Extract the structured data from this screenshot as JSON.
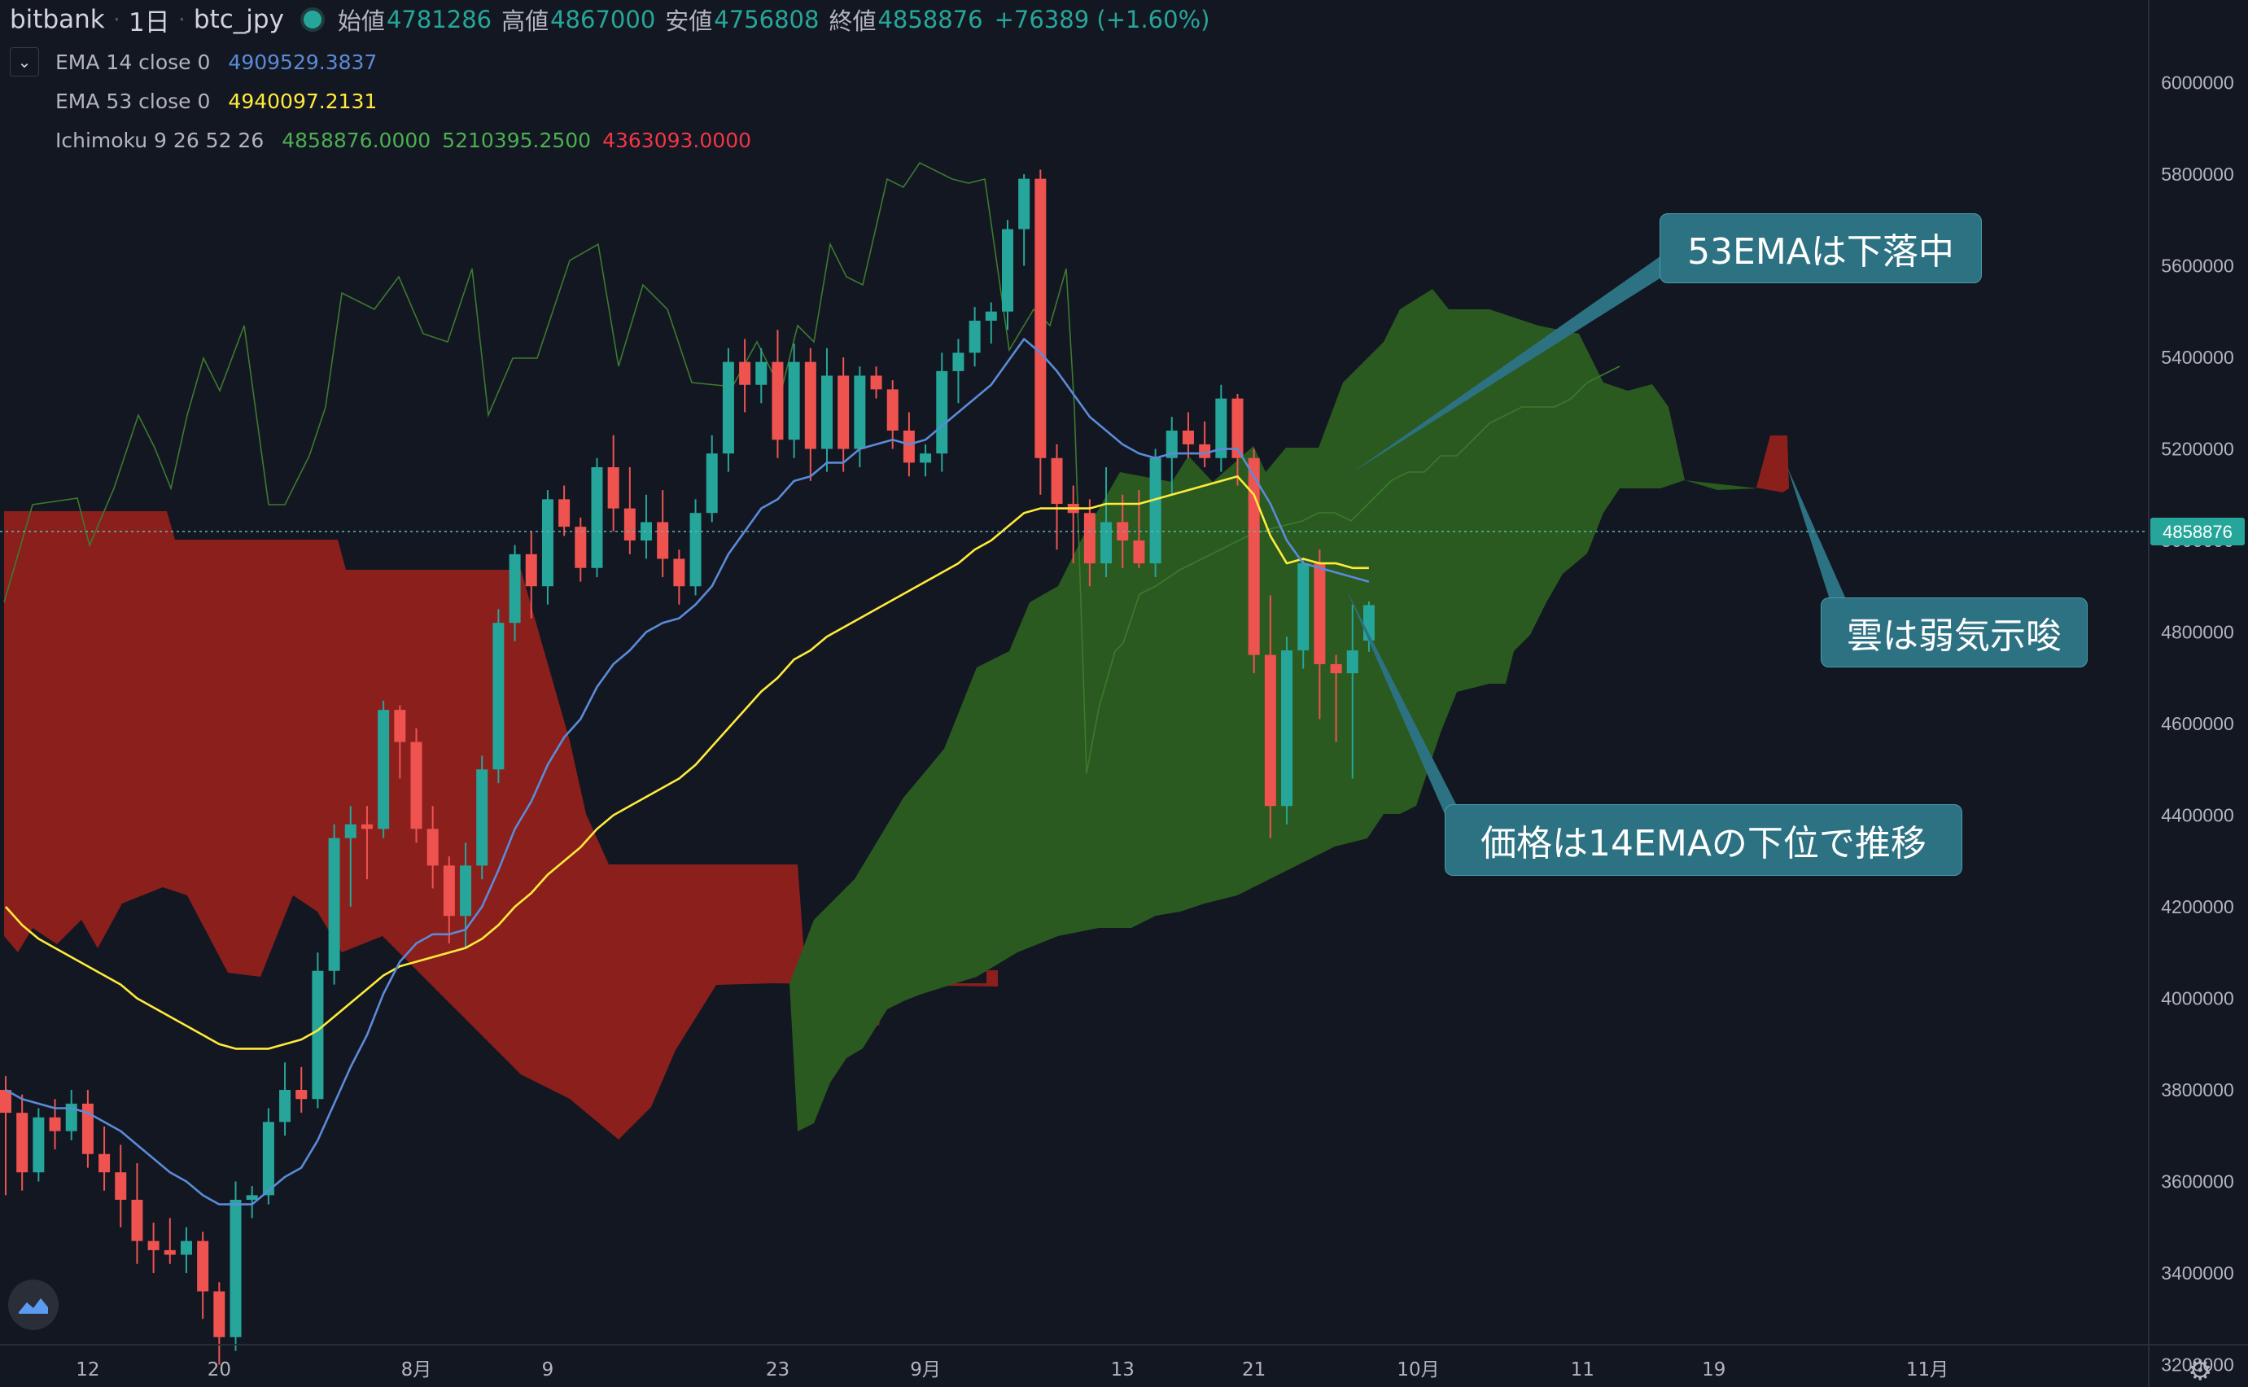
{
  "header": {
    "exchange": "bitbank",
    "interval": "1日",
    "symbol": "btc_jpy",
    "open_label": "始値",
    "open": "4781286",
    "high_label": "高値",
    "high": "4867000",
    "low_label": "安値",
    "low": "4756808",
    "close_label": "終値",
    "close": "4858876",
    "change": "+76389 (+1.60%)"
  },
  "legend": {
    "ema14": {
      "label": "EMA 14 close 0",
      "value": "4909529.3837",
      "color": "#5b8bd8"
    },
    "ema53": {
      "label": "EMA 53 close 0",
      "value": "4940097.2131",
      "color": "#ffeb3b"
    },
    "ichimoku": {
      "label": "Ichimoku 9 26 52 26",
      "v1": "4858876.0000",
      "v2": "5210395.2500",
      "v3": "4363093.0000",
      "c1": "#4caf50",
      "c2": "#4caf50",
      "c3": "#f23645"
    }
  },
  "callouts": {
    "ema53": "53EMAは下落中",
    "cloud": "雲は弱気示唆",
    "price": "価格は14EMAの下位で推移"
  },
  "price_tag": "4858876",
  "colors": {
    "up": "#26a69a",
    "down": "#ef5350",
    "cloud_bull": "#2a5a1f",
    "cloud_bear": "#8b1f1c"
  },
  "chart_data": {
    "type": "candlestick",
    "y_range": [
      3100000,
      6000000
    ],
    "y_ticks": [
      "6000000",
      "5800000",
      "5600000",
      "5400000",
      "5200000",
      "5000000",
      "4800000",
      "4600000",
      "4400000",
      "4200000",
      "4000000",
      "3800000",
      "3600000",
      "3400000",
      "3200000"
    ],
    "x_ticks": [
      {
        "label": "12",
        "i": 5
      },
      {
        "label": "20",
        "i": 13
      },
      {
        "label": "8月",
        "i": 25
      },
      {
        "label": "9",
        "i": 33
      },
      {
        "label": "23",
        "i": 47
      },
      {
        "label": "9月",
        "i": 56
      },
      {
        "label": "13",
        "i": 68
      },
      {
        "label": "21",
        "i": 76
      },
      {
        "label": "10月",
        "i": 86
      },
      {
        "label": "11",
        "i": 96
      },
      {
        "label": "19",
        "i": 104
      },
      {
        "label": "11月",
        "i": 117
      }
    ],
    "candles": [
      [
        3800000,
        3830000,
        3570000,
        3750000
      ],
      [
        3750000,
        3790000,
        3580000,
        3620000
      ],
      [
        3620000,
        3760000,
        3600000,
        3740000
      ],
      [
        3740000,
        3780000,
        3670000,
        3710000
      ],
      [
        3710000,
        3800000,
        3690000,
        3770000
      ],
      [
        3770000,
        3800000,
        3630000,
        3660000
      ],
      [
        3660000,
        3720000,
        3580000,
        3620000
      ],
      [
        3620000,
        3680000,
        3500000,
        3560000
      ],
      [
        3560000,
        3640000,
        3420000,
        3470000
      ],
      [
        3470000,
        3510000,
        3400000,
        3450000
      ],
      [
        3450000,
        3520000,
        3420000,
        3440000
      ],
      [
        3440000,
        3500000,
        3400000,
        3470000
      ],
      [
        3470000,
        3490000,
        3300000,
        3360000
      ],
      [
        3360000,
        3380000,
        3200000,
        3260000
      ],
      [
        3260000,
        3600000,
        3230000,
        3560000
      ],
      [
        3560000,
        3590000,
        3520000,
        3570000
      ],
      [
        3570000,
        3760000,
        3550000,
        3730000
      ],
      [
        3730000,
        3860000,
        3700000,
        3800000
      ],
      [
        3800000,
        3850000,
        3750000,
        3780000
      ],
      [
        3780000,
        4100000,
        3760000,
        4060000
      ],
      [
        4060000,
        4380000,
        4030000,
        4350000
      ],
      [
        4350000,
        4420000,
        4200000,
        4380000
      ],
      [
        4380000,
        4420000,
        4260000,
        4370000
      ],
      [
        4370000,
        4650000,
        4350000,
        4630000
      ],
      [
        4630000,
        4640000,
        4480000,
        4560000
      ],
      [
        4560000,
        4590000,
        4340000,
        4370000
      ],
      [
        4370000,
        4420000,
        4240000,
        4290000
      ],
      [
        4290000,
        4310000,
        4120000,
        4180000
      ],
      [
        4180000,
        4340000,
        4110000,
        4290000
      ],
      [
        4290000,
        4530000,
        4260000,
        4500000
      ],
      [
        4500000,
        4850000,
        4470000,
        4820000
      ],
      [
        4820000,
        4990000,
        4780000,
        4970000
      ],
      [
        4970000,
        5020000,
        4830000,
        4900000
      ],
      [
        4900000,
        5110000,
        4860000,
        5090000
      ],
      [
        5090000,
        5120000,
        5010000,
        5030000
      ],
      [
        5030000,
        5050000,
        4910000,
        4940000
      ],
      [
        4940000,
        5180000,
        4920000,
        5160000
      ],
      [
        5160000,
        5230000,
        5020000,
        5070000
      ],
      [
        5070000,
        5160000,
        4970000,
        5000000
      ],
      [
        5000000,
        5100000,
        4960000,
        5040000
      ],
      [
        5040000,
        5110000,
        4920000,
        4960000
      ],
      [
        4960000,
        4980000,
        4860000,
        4900000
      ],
      [
        4900000,
        5090000,
        4880000,
        5060000
      ],
      [
        5060000,
        5230000,
        5040000,
        5190000
      ],
      [
        5190000,
        5420000,
        5150000,
        5390000
      ],
      [
        5390000,
        5440000,
        5280000,
        5340000
      ],
      [
        5340000,
        5420000,
        5300000,
        5390000
      ],
      [
        5390000,
        5460000,
        5180000,
        5220000
      ],
      [
        5220000,
        5430000,
        5180000,
        5390000
      ],
      [
        5390000,
        5420000,
        5130000,
        5200000
      ],
      [
        5200000,
        5420000,
        5150000,
        5360000
      ],
      [
        5360000,
        5400000,
        5150000,
        5200000
      ],
      [
        5200000,
        5380000,
        5160000,
        5360000
      ],
      [
        5360000,
        5380000,
        5310000,
        5330000
      ],
      [
        5330000,
        5350000,
        5200000,
        5240000
      ],
      [
        5240000,
        5280000,
        5140000,
        5170000
      ],
      [
        5170000,
        5210000,
        5140000,
        5190000
      ],
      [
        5190000,
        5410000,
        5150000,
        5370000
      ],
      [
        5370000,
        5440000,
        5300000,
        5410000
      ],
      [
        5410000,
        5510000,
        5380000,
        5480000
      ],
      [
        5480000,
        5520000,
        5430000,
        5500000
      ],
      [
        5500000,
        5700000,
        5460000,
        5680000
      ],
      [
        5680000,
        5800000,
        5600000,
        5790000
      ],
      [
        5790000,
        5810000,
        5100000,
        5180000
      ],
      [
        5180000,
        5210000,
        4980000,
        5080000
      ],
      [
        5080000,
        5120000,
        4950000,
        5060000
      ],
      [
        5060000,
        5090000,
        4900000,
        4950000
      ],
      [
        4950000,
        5160000,
        4920000,
        5040000
      ],
      [
        5040000,
        5100000,
        4940000,
        5000000
      ],
      [
        5000000,
        5110000,
        4940000,
        4950000
      ],
      [
        4950000,
        5200000,
        4920000,
        5180000
      ],
      [
        5180000,
        5270000,
        5100000,
        5240000
      ],
      [
        5240000,
        5280000,
        5180000,
        5210000
      ],
      [
        5210000,
        5260000,
        5160000,
        5180000
      ],
      [
        5180000,
        5340000,
        5150000,
        5310000
      ],
      [
        5310000,
        5320000,
        5120000,
        5180000
      ],
      [
        5180000,
        5200000,
        4710000,
        4750000
      ],
      [
        4750000,
        4880000,
        4350000,
        4420000
      ],
      [
        4420000,
        4790000,
        4380000,
        4760000
      ],
      [
        4760000,
        4960000,
        4720000,
        4950000
      ],
      [
        4950000,
        4980000,
        4610000,
        4730000
      ],
      [
        4730000,
        4750000,
        4560000,
        4710000
      ],
      [
        4710000,
        4860000,
        4480000,
        4760000
      ],
      [
        4781286,
        4867000,
        4756808,
        4858876
      ]
    ],
    "ema14": [
      3800000,
      3780000,
      3770000,
      3760000,
      3760000,
      3750000,
      3730000,
      3710000,
      3680000,
      3650000,
      3620000,
      3600000,
      3570000,
      3550000,
      3550000,
      3550000,
      3580000,
      3610000,
      3630000,
      3690000,
      3770000,
      3850000,
      3920000,
      4010000,
      4080000,
      4120000,
      4140000,
      4140000,
      4150000,
      4200000,
      4280000,
      4370000,
      4430000,
      4510000,
      4570000,
      4610000,
      4680000,
      4730000,
      4760000,
      4800000,
      4820000,
      4830000,
      4860000,
      4900000,
      4970000,
      5020000,
      5070000,
      5090000,
      5130000,
      5140000,
      5170000,
      5170000,
      5200000,
      5210000,
      5220000,
      5210000,
      5220000,
      5250000,
      5280000,
      5310000,
      5340000,
      5390000,
      5440000,
      5410000,
      5370000,
      5320000,
      5270000,
      5240000,
      5210000,
      5190000,
      5180000,
      5190000,
      5190000,
      5190000,
      5200000,
      5200000,
      5140000,
      5080000,
      5000000,
      4950000,
      4940000,
      4930000,
      4920000,
      4910000
    ],
    "ema53": [
      4200000,
      4160000,
      4130000,
      4110000,
      4090000,
      4070000,
      4050000,
      4030000,
      4000000,
      3980000,
      3960000,
      3940000,
      3920000,
      3900000,
      3890000,
      3890000,
      3890000,
      3900000,
      3910000,
      3930000,
      3960000,
      3990000,
      4020000,
      4050000,
      4070000,
      4080000,
      4090000,
      4100000,
      4110000,
      4130000,
      4160000,
      4200000,
      4230000,
      4270000,
      4300000,
      4330000,
      4370000,
      4400000,
      4420000,
      4440000,
      4460000,
      4480000,
      4510000,
      4550000,
      4590000,
      4630000,
      4670000,
      4700000,
      4740000,
      4760000,
      4790000,
      4810000,
      4830000,
      4850000,
      4870000,
      4890000,
      4910000,
      4930000,
      4950000,
      4980000,
      5000000,
      5030000,
      5060000,
      5070000,
      5070000,
      5070000,
      5070000,
      5080000,
      5080000,
      5080000,
      5090000,
      5100000,
      5110000,
      5120000,
      5130000,
      5140000,
      5100000,
      5010000,
      4950000,
      4960000,
      4950000,
      4950000,
      4940000,
      4940000
    ]
  }
}
